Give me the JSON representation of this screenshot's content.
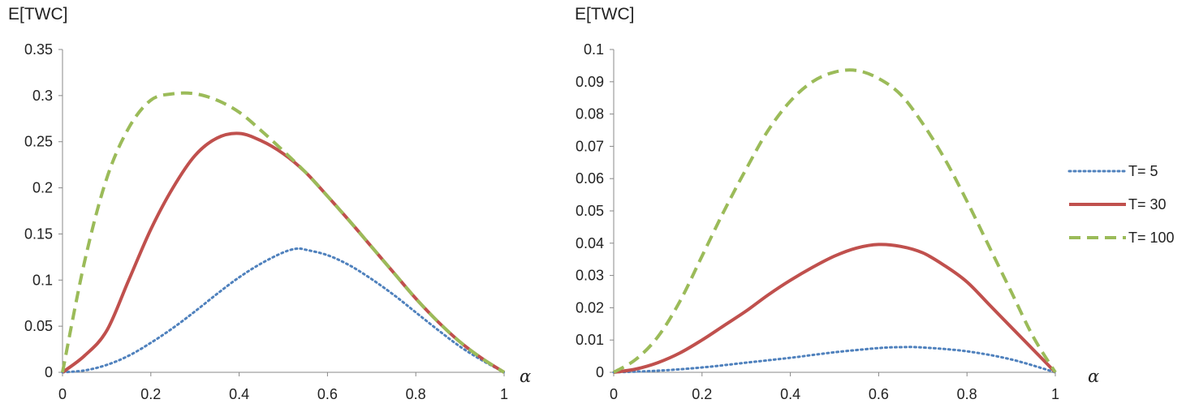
{
  "chart_data": [
    {
      "type": "line",
      "ylabel": "E[TWC]",
      "xlabel": "α",
      "xlim": [
        0,
        1
      ],
      "ylim": [
        0,
        0.35
      ],
      "xticks": [
        "0",
        "0.2",
        "0.4",
        "0.6",
        "0.8",
        "1"
      ],
      "yticks": [
        "0",
        "0.05",
        "0.1",
        "0.15",
        "0.2",
        "0.25",
        "0.3",
        "0.35"
      ],
      "grid": false,
      "series": [
        {
          "name": "T= 5",
          "color": "#4F81BD",
          "style": "dotted",
          "x": [
            0,
            0.05,
            0.1,
            0.15,
            0.2,
            0.25,
            0.3,
            0.35,
            0.4,
            0.45,
            0.5,
            0.53,
            0.55,
            0.6,
            0.65,
            0.7,
            0.75,
            0.8,
            0.85,
            0.9,
            0.95,
            1
          ],
          "y": [
            0,
            0.002,
            0.008,
            0.018,
            0.032,
            0.048,
            0.066,
            0.085,
            0.103,
            0.118,
            0.13,
            0.134,
            0.133,
            0.127,
            0.116,
            0.101,
            0.084,
            0.065,
            0.046,
            0.028,
            0.013,
            0
          ]
        },
        {
          "name": "T= 30",
          "color": "#C0504D",
          "style": "solid",
          "x": [
            0,
            0.05,
            0.1,
            0.15,
            0.2,
            0.25,
            0.3,
            0.35,
            0.4,
            0.45,
            0.5,
            0.55,
            0.6,
            0.65,
            0.7,
            0.75,
            0.8,
            0.85,
            0.9,
            0.95,
            1
          ],
          "y": [
            0,
            0.018,
            0.045,
            0.1,
            0.155,
            0.2,
            0.235,
            0.254,
            0.259,
            0.251,
            0.237,
            0.217,
            0.191,
            0.164,
            0.136,
            0.108,
            0.08,
            0.055,
            0.033,
            0.015,
            0
          ]
        },
        {
          "name": "T= 100",
          "color": "#9BBB59",
          "style": "dashed",
          "x": [
            0,
            0.05,
            0.1,
            0.15,
            0.2,
            0.25,
            0.3,
            0.35,
            0.4,
            0.45,
            0.5,
            0.55,
            0.6,
            0.65,
            0.7,
            0.75,
            0.8,
            0.85,
            0.9,
            0.95,
            1
          ],
          "y": [
            0,
            0.12,
            0.21,
            0.265,
            0.295,
            0.302,
            0.302,
            0.295,
            0.282,
            0.262,
            0.24,
            0.217,
            0.191,
            0.164,
            0.136,
            0.108,
            0.08,
            0.055,
            0.033,
            0.015,
            0
          ]
        }
      ]
    },
    {
      "type": "line",
      "ylabel": "E[TWC]",
      "xlabel": "α",
      "xlim": [
        0,
        1
      ],
      "ylim": [
        0,
        0.1
      ],
      "xticks": [
        "0",
        "0.2",
        "0.4",
        "0.6",
        "0.8",
        "1"
      ],
      "yticks": [
        "0",
        "0.01",
        "0.02",
        "0.03",
        "0.04",
        "0.05",
        "0.06",
        "0.07",
        "0.08",
        "0.09",
        "0.1"
      ],
      "grid": false,
      "legend": "right",
      "series": [
        {
          "name": "T= 5",
          "color": "#4F81BD",
          "style": "dotted",
          "x": [
            0,
            0.1,
            0.2,
            0.3,
            0.4,
            0.5,
            0.6,
            0.65,
            0.7,
            0.8,
            0.9,
            1
          ],
          "y": [
            0,
            0.0005,
            0.0015,
            0.003,
            0.0045,
            0.0062,
            0.0075,
            0.0078,
            0.0077,
            0.0065,
            0.004,
            0
          ]
        },
        {
          "name": "T= 30",
          "color": "#C0504D",
          "style": "solid",
          "x": [
            0,
            0.05,
            0.1,
            0.15,
            0.2,
            0.25,
            0.3,
            0.35,
            0.4,
            0.45,
            0.5,
            0.55,
            0.6,
            0.65,
            0.7,
            0.75,
            0.8,
            0.85,
            0.9,
            0.95,
            1
          ],
          "y": [
            0,
            0.001,
            0.003,
            0.006,
            0.01,
            0.0145,
            0.019,
            0.024,
            0.0285,
            0.0325,
            0.036,
            0.0385,
            0.0396,
            0.039,
            0.037,
            0.033,
            0.028,
            0.021,
            0.014,
            0.007,
            0
          ]
        },
        {
          "name": "T= 100",
          "color": "#9BBB59",
          "style": "dashed",
          "x": [
            0,
            0.05,
            0.1,
            0.15,
            0.2,
            0.25,
            0.3,
            0.35,
            0.4,
            0.45,
            0.5,
            0.55,
            0.6,
            0.65,
            0.7,
            0.75,
            0.8,
            0.85,
            0.9,
            0.95,
            1
          ],
          "y": [
            0,
            0.004,
            0.011,
            0.022,
            0.036,
            0.05,
            0.063,
            0.075,
            0.084,
            0.09,
            0.093,
            0.0935,
            0.091,
            0.086,
            0.077,
            0.066,
            0.053,
            0.039,
            0.025,
            0.011,
            0
          ]
        }
      ]
    }
  ]
}
